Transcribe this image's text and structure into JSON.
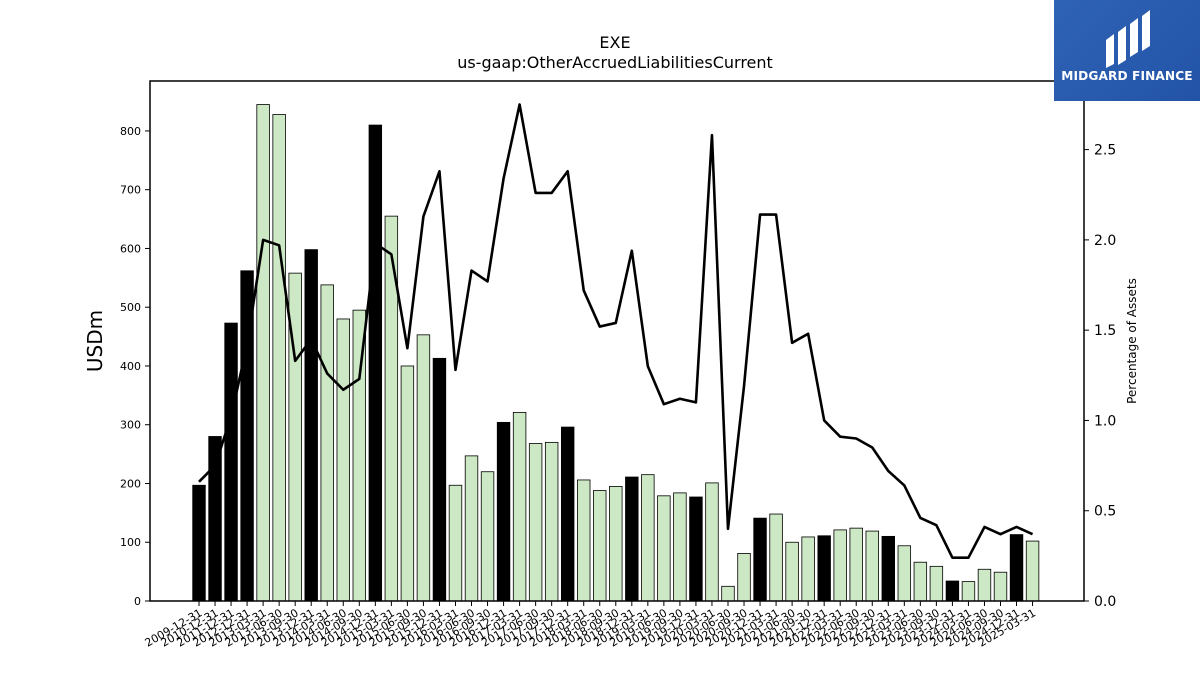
{
  "branding": {
    "logo_text": "MIDGARD FINANCE",
    "logo_color": "#2a5db0"
  },
  "chart_data": {
    "type": "bar",
    "title": "EXE",
    "subtitle": "us-gaap:OtherAccruedLiabilitiesCurrent",
    "ylabel": "USDm",
    "y2label": "Percentage of Assets",
    "ylim": [
      0,
      885
    ],
    "y2lim": [
      0,
      2.88
    ],
    "yticks": [
      0,
      100,
      200,
      300,
      400,
      500,
      600,
      700,
      800
    ],
    "y2ticks": [
      "0.0",
      "0.5",
      "1.0",
      "1.5",
      "2.0",
      "2.5"
    ],
    "grid": false,
    "colors": {
      "annual_bar": "#000000",
      "quarter_bar": "#cce8c4",
      "line": "#000000"
    },
    "categories": [
      "2009-12-31",
      "2010-12-31",
      "2011-12-31",
      "2012-12-31",
      "2013-03-31",
      "2013-06-30",
      "2013-09-30",
      "2013-12-31",
      "2014-03-31",
      "2014-06-30",
      "2014-09-30",
      "2014-12-31",
      "2015-03-31",
      "2015-06-30",
      "2015-09-30",
      "2015-12-31",
      "2016-03-31",
      "2016-06-30",
      "2016-09-30",
      "2016-12-31",
      "2017-03-31",
      "2017-06-30",
      "2017-09-30",
      "2017-12-31",
      "2018-03-31",
      "2018-06-30",
      "2018-09-30",
      "2018-12-31",
      "2019-03-31",
      "2019-06-30",
      "2019-09-30",
      "2019-12-31",
      "2020-03-31",
      "2020-06-30",
      "2020-09-30",
      "2020-12-31",
      "2021-03-31",
      "2021-06-30",
      "2021-09-30",
      "2021-12-31",
      "2022-03-31",
      "2022-06-30",
      "2022-09-30",
      "2022-12-31",
      "2023-03-31",
      "2023-06-30",
      "2023-09-30",
      "2023-12-31",
      "2024-03-31",
      "2024-06-30",
      "2024-09-30",
      "2024-12-31",
      "2025-03-31"
    ],
    "series": [
      {
        "values": [
          197,
          280,
          473,
          562,
          845,
          828,
          558,
          598,
          538,
          480,
          495,
          810,
          655,
          400,
          453,
          413,
          197,
          247,
          220,
          304,
          321,
          268,
          270,
          296,
          206,
          188,
          195,
          211,
          215,
          179,
          184,
          177,
          201,
          25,
          81,
          141,
          148,
          100,
          109,
          111,
          121,
          124,
          119,
          110,
          94,
          66,
          59,
          34,
          33,
          54,
          49,
          113,
          102
        ],
        "year_end": [
          true,
          true,
          true,
          true,
          false,
          false,
          false,
          true,
          false,
          false,
          false,
          true,
          false,
          false,
          false,
          true,
          false,
          false,
          false,
          true,
          false,
          false,
          false,
          true,
          false,
          false,
          false,
          true,
          false,
          false,
          false,
          true,
          false,
          false,
          false,
          true,
          false,
          false,
          false,
          true,
          false,
          false,
          false,
          true,
          false,
          false,
          false,
          true,
          false,
          false,
          false,
          true,
          false
        ]
      },
      {
        "values": [
          0.66,
          0.75,
          1.02,
          1.42,
          2.0,
          1.97,
          1.33,
          1.45,
          1.26,
          1.17,
          1.23,
          1.98,
          1.92,
          1.4,
          2.13,
          2.38,
          1.28,
          1.83,
          1.77,
          2.34,
          2.75,
          2.26,
          2.26,
          2.38,
          1.72,
          1.52,
          1.54,
          1.94,
          1.3,
          1.09,
          1.12,
          1.1,
          2.58,
          0.4,
          1.19,
          2.14,
          2.14,
          1.43,
          1.48,
          1.0,
          0.91,
          0.9,
          0.85,
          0.72,
          0.64,
          0.46,
          0.42,
          0.24,
          0.24,
          0.41,
          0.37,
          0.41,
          0.37
        ]
      }
    ]
  }
}
